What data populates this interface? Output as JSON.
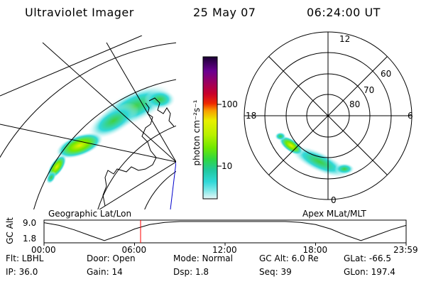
{
  "header": {
    "title": "Ultraviolet Imager",
    "date": "25 May 07",
    "time": "06:24:00 UT"
  },
  "map_panel": {
    "label": "Geographic Lat/Lon"
  },
  "polar_panel": {
    "label": "Apex MLat/MLT",
    "mlt_labels": [
      "12",
      "18",
      "6",
      "0"
    ],
    "lat_labels": [
      "60",
      "70",
      "80"
    ]
  },
  "colorbar": {
    "label": "photon cm⁻²s⁻¹",
    "tick_labels": [
      "100",
      "10"
    ],
    "colors": [
      "#1a0033",
      "#2a0050",
      "#6a0090",
      "#9a0060",
      "#c8002a",
      "#ee2a00",
      "#f86a00",
      "#f8a000",
      "#f8d000",
      "#e8f000",
      "#b8f000",
      "#70e800",
      "#30d840",
      "#20c8a0",
      "#30d8d8",
      "#80e8e8",
      "#c8f0f0",
      "#e8f8f8"
    ]
  },
  "chart_data": {
    "type": "line",
    "title": "",
    "ylabel": "GC Alt",
    "y_ticks": [
      "9.0",
      "1.8"
    ],
    "x_ticks": [
      "00:00",
      "06:00",
      "12:00",
      "18:00",
      "23:59"
    ],
    "x_hours": [
      0,
      1,
      2,
      3,
      4,
      5,
      6,
      7,
      8,
      9,
      10,
      11,
      12,
      13,
      14,
      15,
      16,
      17,
      18,
      19,
      20,
      21,
      22,
      23,
      24
    ],
    "y_values": [
      8.6,
      7.6,
      6.0,
      4.0,
      2.1,
      4.0,
      6.3,
      7.9,
      8.7,
      9.0,
      9.0,
      9.0,
      9.0,
      9.0,
      9.0,
      9.0,
      9.0,
      8.7,
      7.9,
      6.3,
      4.0,
      2.1,
      4.0,
      6.0,
      7.6
    ],
    "ylim": [
      1.8,
      9.0
    ],
    "xlim": [
      0,
      24
    ],
    "current_time_hours": 6.4,
    "current_time_color": "#ff0000"
  },
  "info": {
    "row1": [
      {
        "label": "Flt:",
        "value": "LBHL"
      },
      {
        "label": "Door:",
        "value": "Open"
      },
      {
        "label": "Mode:",
        "value": "Normal"
      },
      {
        "label": "GC Alt:",
        "value": "6.0 Re"
      },
      {
        "label": "GLat:",
        "value": "-66.5"
      }
    ],
    "row2": [
      {
        "label": "IP:",
        "value": "36.0"
      },
      {
        "label": "Gain:",
        "value": "14"
      },
      {
        "label": "Dsp:",
        "value": "1.8"
      },
      {
        "label": "Seq:",
        "value": "39"
      },
      {
        "label": "GLon:",
        "value": "197.4"
      }
    ]
  }
}
